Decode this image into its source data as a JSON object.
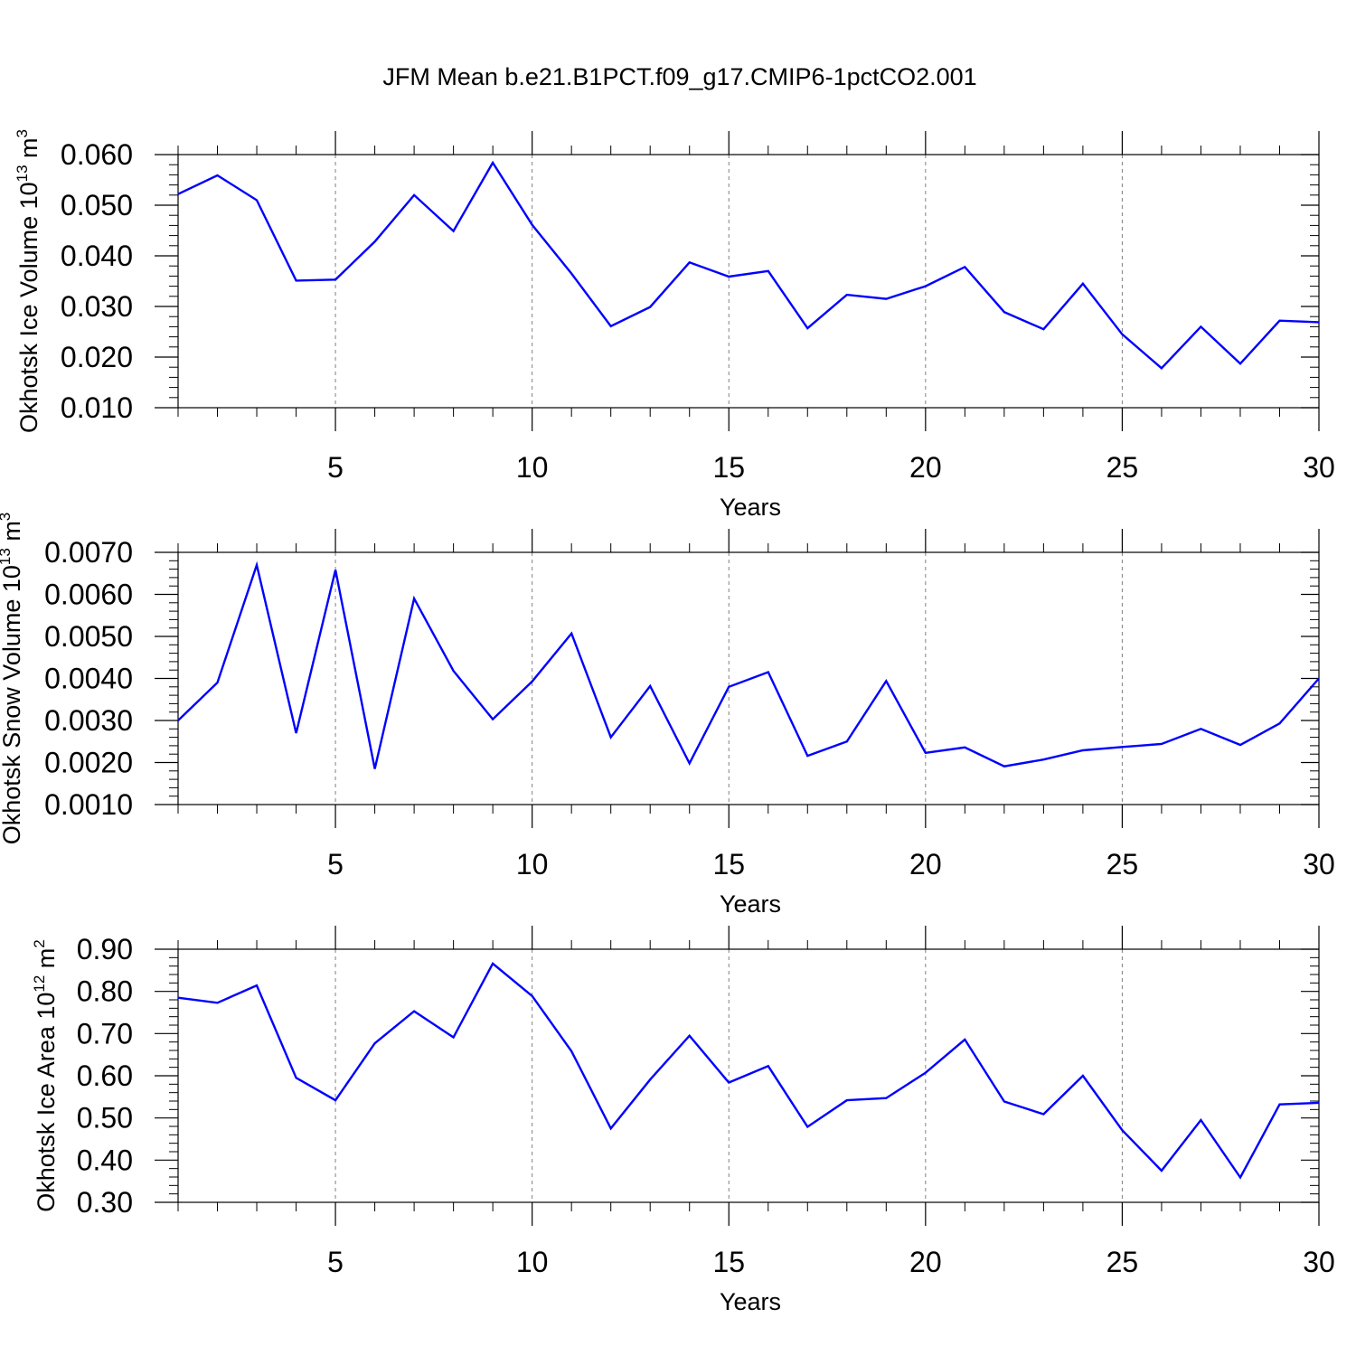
{
  "title": "JFM Mean b.e21.B1PCT.f09_g17.CMIP6-1pctCO2.001",
  "colors": {
    "line": "#0000ff",
    "axis": "#000000",
    "grid": "#808080",
    "background": "#ffffff"
  },
  "chart_data": [
    {
      "type": "line",
      "xlabel": "Years",
      "ylabel": {
        "text": "Okhotsk Ice Volume 10",
        "exp": "13",
        "unit": " m",
        "unit_exp": "3"
      },
      "xlim": [
        1,
        30
      ],
      "ylim": [
        0.01,
        0.06
      ],
      "x_ticks": [
        5,
        10,
        15,
        20,
        25,
        30
      ],
      "y_ticks": [
        0.01,
        0.02,
        0.03,
        0.04,
        0.05,
        0.06
      ],
      "y_tick_labels": [
        "0.010",
        "0.020",
        "0.030",
        "0.040",
        "0.050",
        "0.060"
      ],
      "x_grid": "dashed vertical at major ticks",
      "x": [
        1,
        2,
        3,
        4,
        5,
        6,
        7,
        8,
        9,
        10,
        11,
        12,
        13,
        14,
        15,
        16,
        17,
        18,
        19,
        20,
        21,
        22,
        23,
        24,
        25,
        26,
        27,
        28,
        29,
        30
      ],
      "values": [
        0.0522,
        0.0559,
        0.051,
        0.0351,
        0.0353,
        0.0428,
        0.052,
        0.0449,
        0.0584,
        0.0461,
        0.0365,
        0.0261,
        0.0299,
        0.0387,
        0.0359,
        0.037,
        0.0257,
        0.0323,
        0.0315,
        0.034,
        0.0378,
        0.0289,
        0.0255,
        0.0345,
        0.0245,
        0.0178,
        0.026,
        0.0187,
        0.0272,
        0.0269
      ]
    },
    {
      "type": "line",
      "xlabel": "Years",
      "ylabel": {
        "text": "Okhotsk Snow Volume 10",
        "exp": "13",
        "unit": " m",
        "unit_exp": "3"
      },
      "xlim": [
        1,
        30
      ],
      "ylim": [
        0.001,
        0.007
      ],
      "x_ticks": [
        5,
        10,
        15,
        20,
        25,
        30
      ],
      "y_ticks": [
        0.001,
        0.002,
        0.003,
        0.004,
        0.005,
        0.006,
        0.007
      ],
      "y_tick_labels": [
        "0.0010",
        "0.0020",
        "0.0030",
        "0.0040",
        "0.0050",
        "0.0060",
        "0.0070"
      ],
      "x_grid": "dashed vertical at major ticks",
      "x": [
        1,
        2,
        3,
        4,
        5,
        6,
        7,
        8,
        9,
        10,
        11,
        12,
        13,
        14,
        15,
        16,
        17,
        18,
        19,
        20,
        21,
        22,
        23,
        24,
        25,
        26,
        27,
        28,
        29,
        30
      ],
      "values": [
        0.003,
        0.0039,
        0.0067,
        0.0027,
        0.00658,
        0.00185,
        0.0059,
        0.00418,
        0.00303,
        0.00393,
        0.00507,
        0.0026,
        0.00382,
        0.00198,
        0.0038,
        0.00415,
        0.00216,
        0.0025,
        0.00394,
        0.00223,
        0.00236,
        0.00191,
        0.00207,
        0.00229,
        0.00237,
        0.00244,
        0.0028,
        0.00242,
        0.00293,
        0.004
      ]
    },
    {
      "type": "line",
      "xlabel": "Years",
      "ylabel": {
        "text": "Okhotsk Ice Area 10",
        "exp": "12",
        "unit": " m",
        "unit_exp": "2"
      },
      "xlim": [
        1,
        30
      ],
      "ylim": [
        0.3,
        0.9
      ],
      "x_ticks": [
        5,
        10,
        15,
        20,
        25,
        30
      ],
      "y_ticks": [
        0.3,
        0.4,
        0.5,
        0.6,
        0.7,
        0.8,
        0.9
      ],
      "y_tick_labels": [
        "0.30",
        "0.40",
        "0.50",
        "0.60",
        "0.70",
        "0.80",
        "0.90"
      ],
      "x_grid": "dashed vertical at major ticks",
      "x": [
        1,
        2,
        3,
        4,
        5,
        6,
        7,
        8,
        9,
        10,
        11,
        12,
        13,
        14,
        15,
        16,
        17,
        18,
        19,
        20,
        21,
        22,
        23,
        24,
        25,
        26,
        27,
        28,
        29,
        30
      ],
      "values": [
        0.785,
        0.773,
        0.814,
        0.595,
        0.542,
        0.677,
        0.753,
        0.691,
        0.866,
        0.789,
        0.658,
        0.475,
        0.591,
        0.695,
        0.584,
        0.623,
        0.479,
        0.542,
        0.547,
        0.607,
        0.686,
        0.539,
        0.509,
        0.6,
        0.471,
        0.375,
        0.495,
        0.359,
        0.532,
        0.536
      ]
    }
  ]
}
